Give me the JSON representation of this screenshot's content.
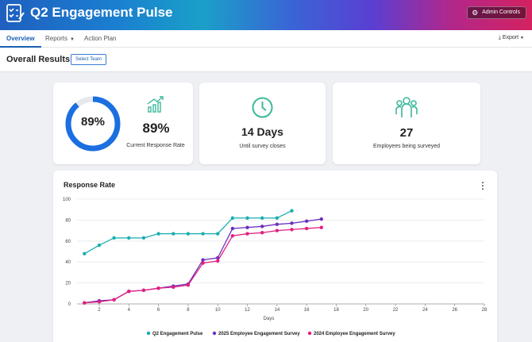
{
  "header": {
    "title": "Q2 Engagement Pulse",
    "admin_label": "Admin Controls"
  },
  "tabs": [
    {
      "label": "Overview",
      "active": true
    },
    {
      "label": "Reports",
      "has_caret": true
    },
    {
      "label": "Action Plan"
    }
  ],
  "export_label": "Export",
  "page": {
    "title": "Overall Results",
    "select_team": "Select Team"
  },
  "kpis": {
    "response": {
      "ring_value": "89%",
      "value": "89%",
      "caption": "Current Response Rate",
      "fraction": 0.89
    },
    "days": {
      "value": "14 Days",
      "caption": "Until survey closes"
    },
    "employees": {
      "value": "27",
      "caption": "Employees being surveyed"
    }
  },
  "colors": {
    "accent": "#1b6fe0",
    "teal": "#1aaeb0",
    "purple": "#6a2fc1",
    "pink": "#e21f7e",
    "kpi_icon": "#3cb89a"
  },
  "chart_data": {
    "type": "line",
    "title": "Response Rate",
    "xlabel": "Days",
    "ylabel": "",
    "xlim": [
      0.5,
      28
    ],
    "ylim": [
      0,
      100
    ],
    "xticks": [
      2,
      4,
      6,
      8,
      10,
      12,
      14,
      16,
      18,
      20,
      22,
      24,
      26,
      28
    ],
    "yticks": [
      0,
      20,
      40,
      60,
      80,
      100
    ],
    "grid": true,
    "legend": "bottom",
    "series": [
      {
        "name": "Q2 Engagement Pulse",
        "color": "#1aaeb0",
        "x": [
          1,
          2,
          3,
          4,
          5,
          6,
          7,
          8,
          9,
          10,
          11,
          12,
          13,
          14,
          15
        ],
        "y": [
          48,
          56,
          63,
          63,
          63,
          67,
          67,
          67,
          67,
          67,
          82,
          82,
          82,
          82,
          89
        ]
      },
      {
        "name": "2025 Employee Engagement Survey",
        "color": "#6a2fc1",
        "x": [
          1,
          2,
          3,
          4,
          5,
          6,
          7,
          8,
          9,
          10,
          11,
          12,
          13,
          14,
          15,
          16,
          17
        ],
        "y": [
          1,
          3,
          4,
          12,
          13,
          15,
          17,
          19,
          42,
          44,
          72,
          73,
          74,
          76,
          77,
          79,
          81
        ]
      },
      {
        "name": "2024 Employee Engagement Survey",
        "color": "#e21f7e",
        "x": [
          1,
          2,
          3,
          4,
          5,
          6,
          7,
          8,
          9,
          10,
          11,
          12,
          13,
          14,
          15,
          16,
          17
        ],
        "y": [
          1,
          2,
          4,
          12,
          13,
          15,
          16,
          18,
          39,
          41,
          65,
          67,
          68,
          70,
          71,
          72,
          73
        ]
      }
    ]
  }
}
